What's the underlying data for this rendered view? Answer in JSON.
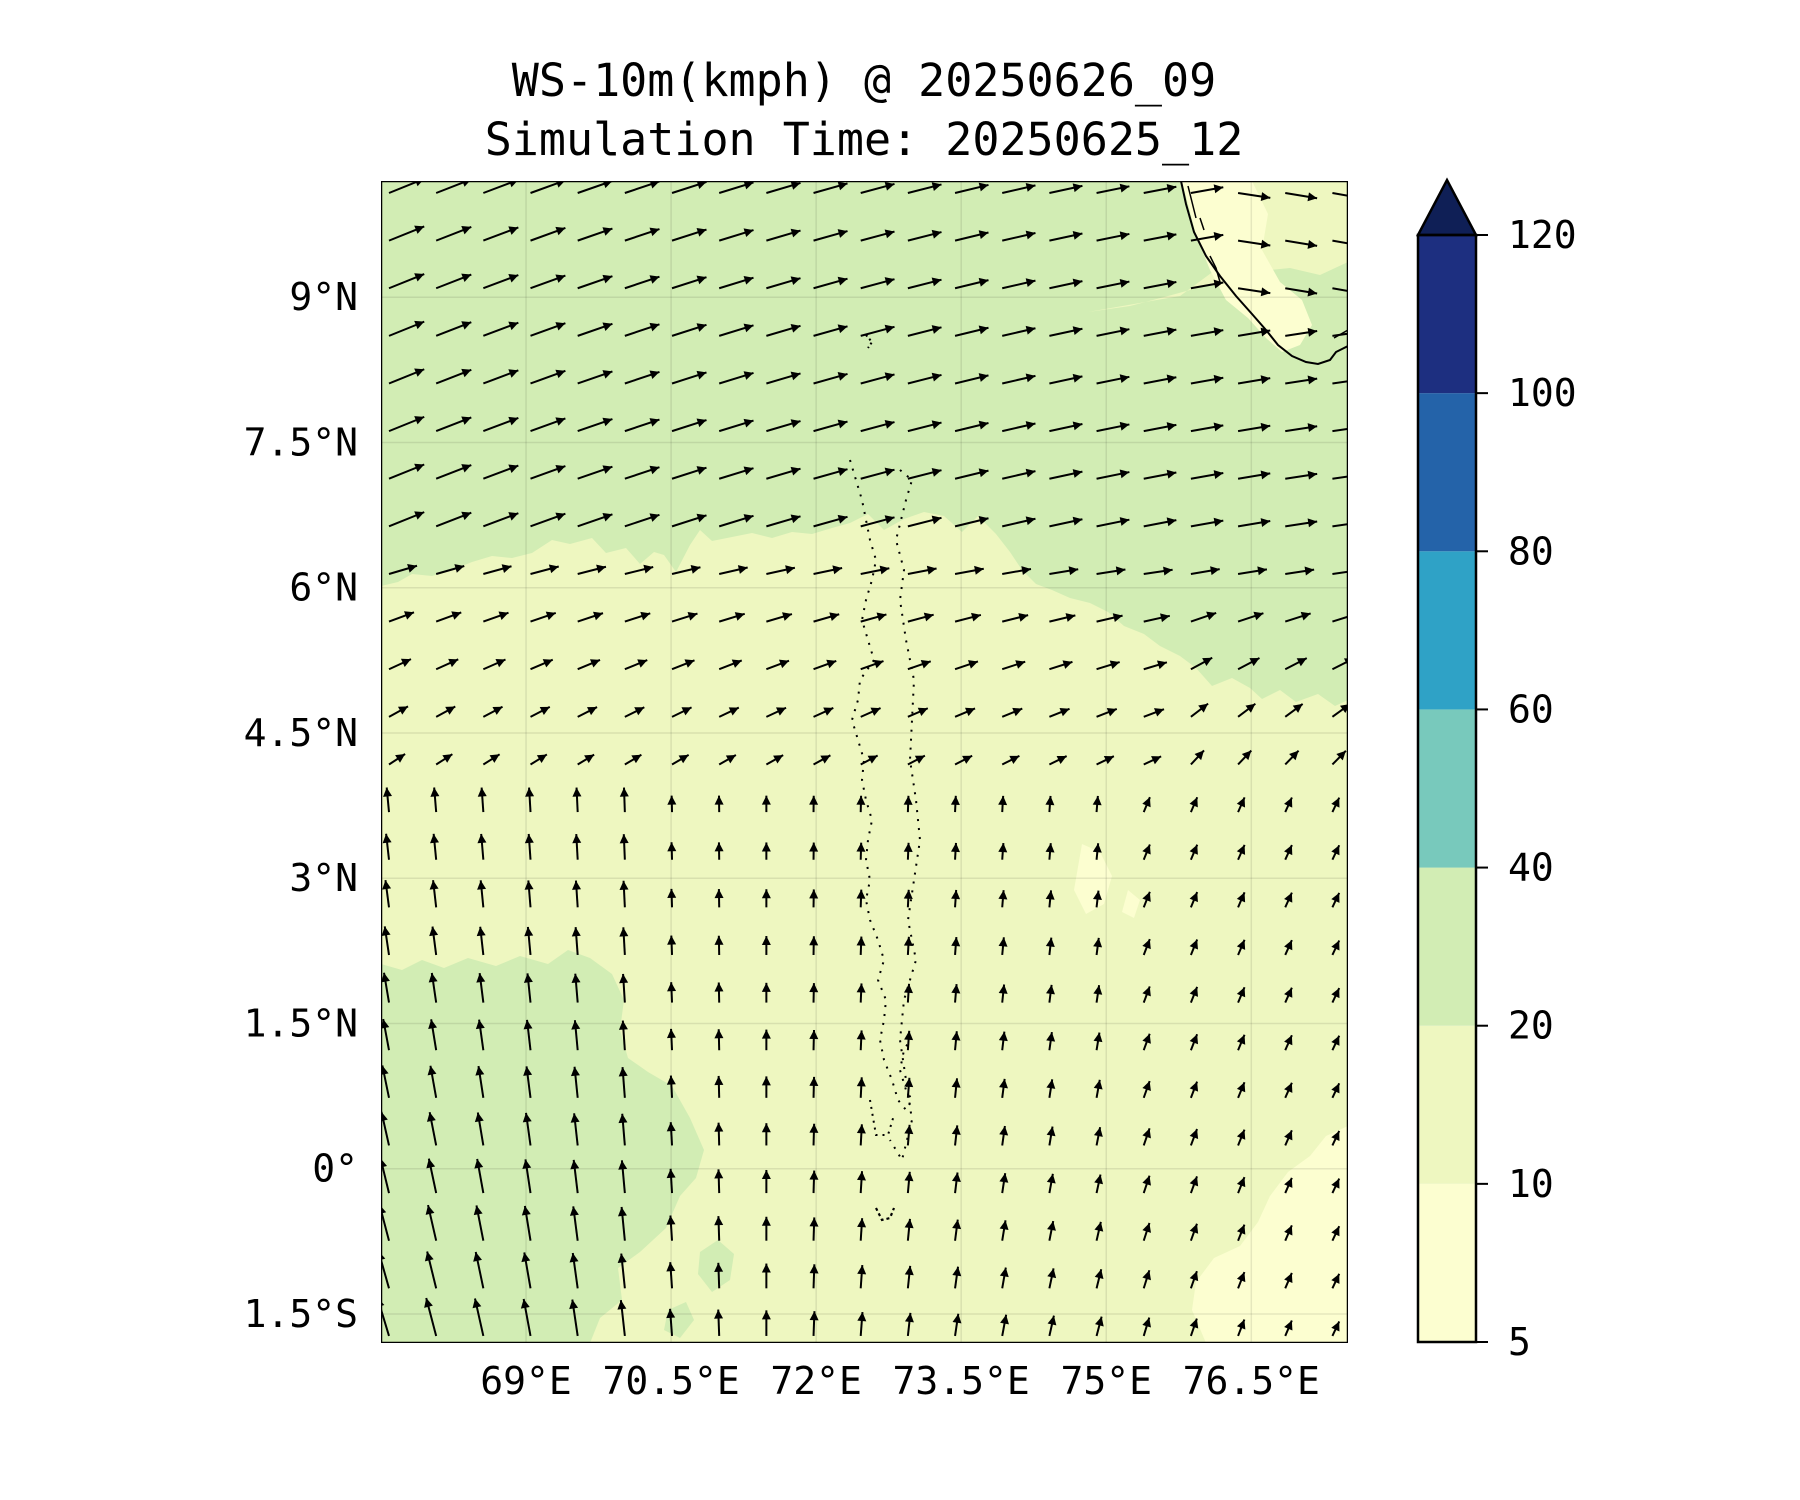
{
  "title": {
    "line1": "WS-10m(kmph) @ 20250626_09",
    "line2": "Simulation Time: 20250625_12"
  },
  "map": {
    "lon_range": [
      67.5,
      77.5
    ],
    "lat_range": [
      -1.8,
      10.2
    ],
    "gridlines": true,
    "lat_ticks": [
      {
        "value": 9.0,
        "label": "9°N"
      },
      {
        "value": 7.5,
        "label": "7.5°N"
      },
      {
        "value": 6.0,
        "label": "6°N"
      },
      {
        "value": 4.5,
        "label": "4.5°N"
      },
      {
        "value": 3.0,
        "label": "3°N"
      },
      {
        "value": 1.5,
        "label": "1.5°N"
      },
      {
        "value": 0.0,
        "label": "0°"
      },
      {
        "value": -1.5,
        "label": "1.5°S"
      }
    ],
    "lon_ticks": [
      {
        "value": 69.0,
        "label": "69°E"
      },
      {
        "value": 70.5,
        "label": "70.5°E"
      },
      {
        "value": 72.0,
        "label": "72°E"
      },
      {
        "value": 73.5,
        "label": "73.5°E"
      },
      {
        "value": 75.0,
        "label": "75°E"
      },
      {
        "value": 76.5,
        "label": "76.5°E"
      }
    ],
    "fill_colors": {
      "range_5_10": "#fcfed0",
      "range_10_20": "#eef7c0",
      "range_20_40": "#d2edb4"
    },
    "wind_vectors": "north: WSW winds ~25 kmph; south: southerly winds ~15 kmph"
  },
  "colorbar": {
    "levels": [
      5,
      10,
      20,
      40,
      60,
      80,
      100,
      120
    ],
    "tick_labels": [
      "5",
      "10",
      "20",
      "40",
      "60",
      "80",
      "100",
      "120"
    ],
    "colors": [
      "#fcfed0",
      "#eef7c0",
      "#d2edb4",
      "#78c9bc",
      "#2fa2c6",
      "#2463a9",
      "#1d2f80"
    ],
    "extend_color": "#0f1f56",
    "extend": "max"
  }
}
